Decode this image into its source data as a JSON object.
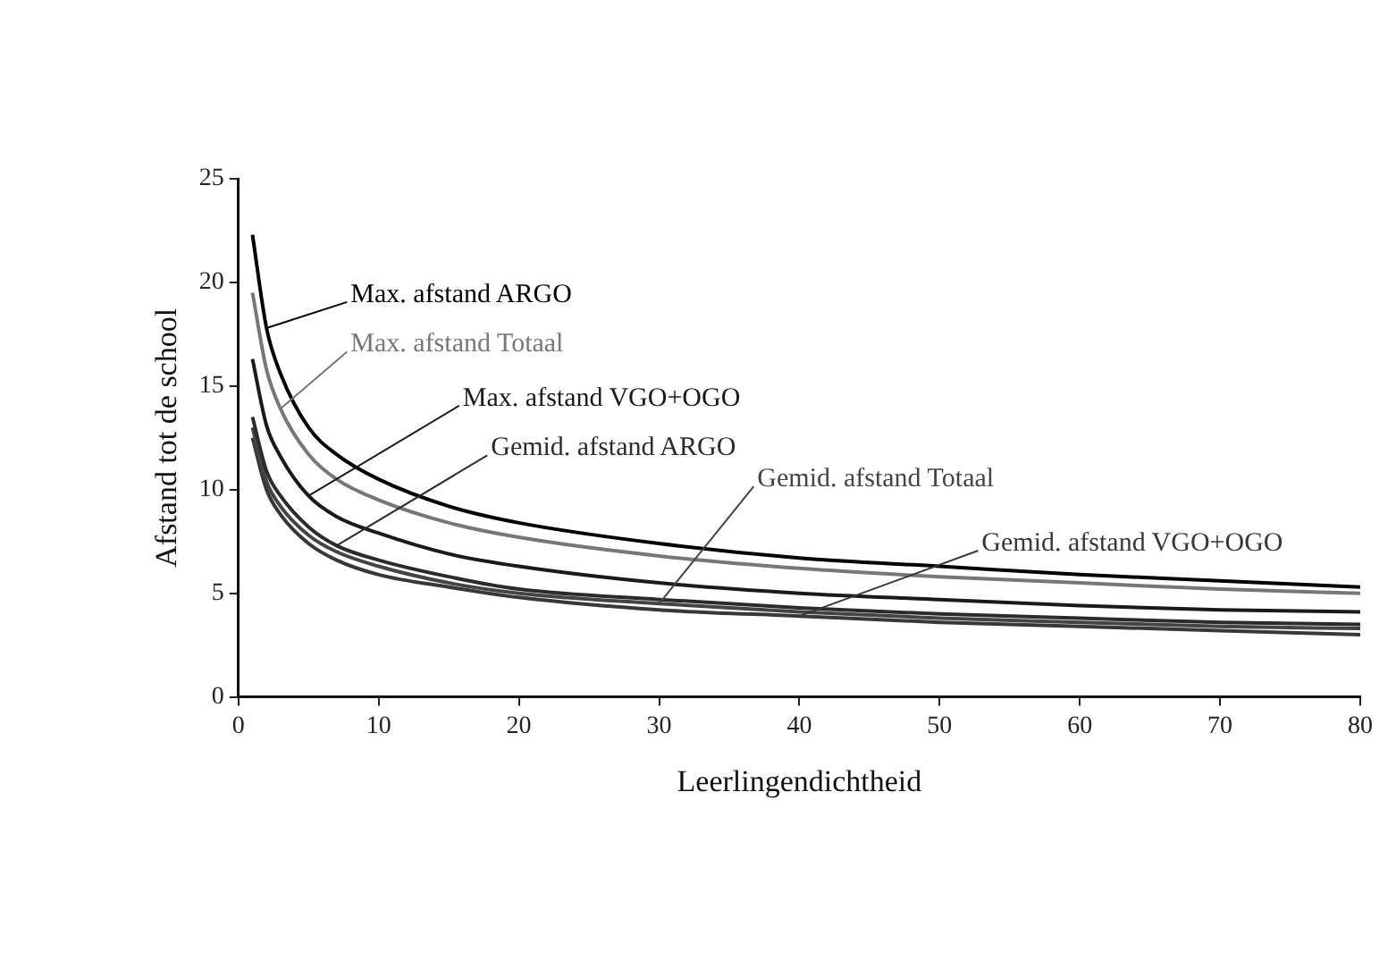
{
  "chart_data": {
    "type": "line",
    "xlabel": "Leerlingendichtheid",
    "ylabel": "Afstand tot de school",
    "x": [
      1,
      2,
      3,
      5,
      7,
      10,
      15,
      20,
      30,
      40,
      50,
      60,
      70,
      80
    ],
    "xlim": [
      0,
      80
    ],
    "xticks": [
      0,
      10,
      20,
      30,
      40,
      50,
      60,
      70,
      80
    ],
    "ylim": [
      0,
      25
    ],
    "yticks": [
      0,
      5,
      10,
      15,
      20,
      25
    ],
    "grid": false,
    "legend": false,
    "marker": "none",
    "line_style": "solid",
    "series": [
      {
        "name": "Max. afstand ARGO",
        "color": "#000000",
        "values": [
          22.3,
          17.8,
          15.6,
          13.0,
          11.7,
          10.5,
          9.2,
          8.4,
          7.4,
          6.7,
          6.3,
          5.9,
          5.6,
          5.3
        ]
      },
      {
        "name": "Max. afstand Totaal",
        "color": "#777777",
        "values": [
          19.5,
          15.8,
          13.9,
          11.7,
          10.5,
          9.5,
          8.4,
          7.7,
          6.8,
          6.2,
          5.8,
          5.5,
          5.2,
          5.0
        ]
      },
      {
        "name": "Max. afstand VGO+OGO",
        "color": "#1a1a1a",
        "values": [
          16.3,
          13.1,
          11.6,
          9.7,
          8.7,
          7.9,
          6.9,
          6.3,
          5.5,
          5.0,
          4.7,
          4.4,
          4.2,
          4.1
        ]
      },
      {
        "name": "Gemid. afstand ARGO",
        "color": "#2b2b2b",
        "values": [
          13.5,
          10.9,
          9.7,
          8.2,
          7.3,
          6.6,
          5.8,
          5.2,
          4.7,
          4.3,
          4.0,
          3.8,
          3.6,
          3.5
        ]
      },
      {
        "name": "Gemid. afstand Totaal",
        "color": "#444444",
        "values": [
          13.0,
          10.4,
          9.2,
          7.8,
          7.0,
          6.3,
          5.5,
          5.0,
          4.5,
          4.1,
          3.8,
          3.6,
          3.4,
          3.3
        ]
      },
      {
        "name": "Gemid. afstand VGO+OGO",
        "color": "#383838",
        "values": [
          12.5,
          10.0,
          8.8,
          7.4,
          6.6,
          5.9,
          5.3,
          4.8,
          4.2,
          3.9,
          3.6,
          3.4,
          3.2,
          3.0
        ]
      }
    ]
  }
}
